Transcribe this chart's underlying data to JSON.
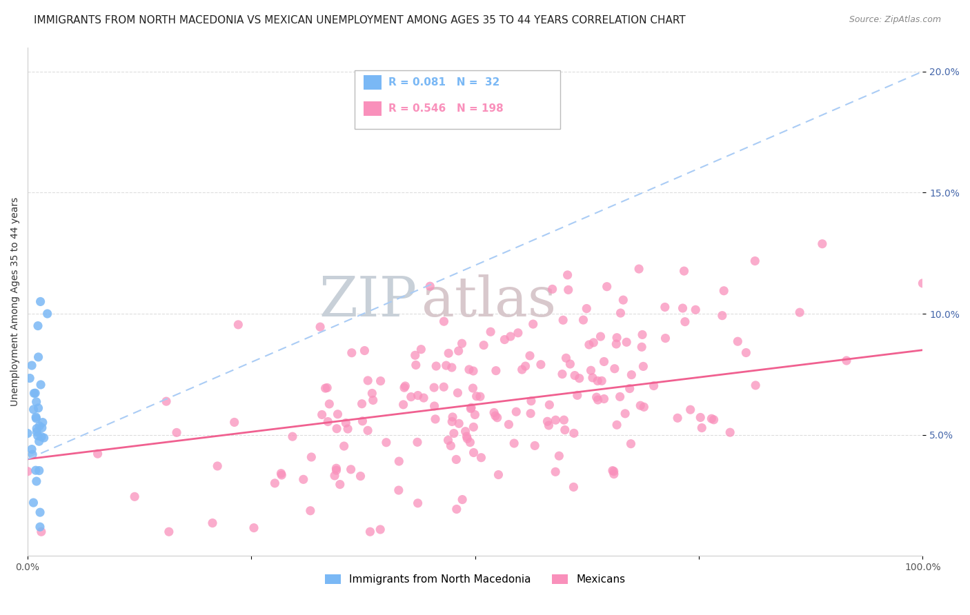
{
  "title": "IMMIGRANTS FROM NORTH MACEDONIA VS MEXICAN UNEMPLOYMENT AMONG AGES 35 TO 44 YEARS CORRELATION CHART",
  "source_text": "Source: ZipAtlas.com",
  "ylabel": "Unemployment Among Ages 35 to 44 years",
  "watermark_zip": "ZIP",
  "watermark_atlas": "atlas",
  "legend_entries": [
    {
      "label": "Immigrants from North Macedonia",
      "R": 0.081,
      "N": 32,
      "color": "#7ab8f5"
    },
    {
      "label": "Mexicans",
      "R": 0.546,
      "N": 198,
      "color": "#f990bb"
    }
  ],
  "xmin": 0.0,
  "xmax": 1.0,
  "ymin": 0.0,
  "ymax": 0.21,
  "yticks": [
    0.05,
    0.1,
    0.15,
    0.2
  ],
  "ytick_labels": [
    "5.0%",
    "10.0%",
    "15.0%",
    "20.0%"
  ],
  "xticks": [
    0.0,
    0.25,
    0.5,
    0.75,
    1.0
  ],
  "xtick_labels": [
    "0.0%",
    "",
    "",
    "",
    "100.0%"
  ],
  "background_color": "#ffffff",
  "plot_bg_color": "#ffffff",
  "grid_color": "#dddddd",
  "title_fontsize": 11,
  "axis_fontsize": 10,
  "blue_color": "#7ab8f5",
  "pink_color": "#f990bb",
  "blue_line_color": "#aaccf5",
  "pink_line_color": "#f06090"
}
